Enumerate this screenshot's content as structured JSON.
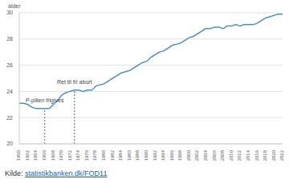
{
  "chart_data": {
    "type": "line",
    "ylabel": "alder",
    "source_label": "Kilde:",
    "source_link": "statistikbanken.dk/FOD11",
    "x": [
      1960,
      1961,
      1962,
      1963,
      1964,
      1965,
      1966,
      1967,
      1968,
      1969,
      1970,
      1971,
      1972,
      1973,
      1974,
      1975,
      1976,
      1977,
      1978,
      1979,
      1980,
      1981,
      1982,
      1983,
      1984,
      1985,
      1986,
      1987,
      1988,
      1989,
      1990,
      1991,
      1992,
      1993,
      1994,
      1995,
      1996,
      1997,
      1998,
      1999,
      2000,
      2001,
      2002,
      2003,
      2004,
      2005,
      2006,
      2007,
      2008,
      2009,
      2010,
      2011,
      2012,
      2013,
      2014,
      2015,
      2016,
      2017,
      2018,
      2019,
      2020,
      2021,
      2022
    ],
    "values": [
      23.1,
      23.1,
      23.0,
      22.8,
      22.7,
      22.7,
      22.7,
      22.7,
      23.0,
      23.3,
      23.7,
      23.9,
      24.0,
      24.1,
      24.1,
      24.0,
      24.1,
      24.1,
      24.4,
      24.5,
      24.6,
      24.8,
      25.0,
      25.2,
      25.4,
      25.5,
      25.6,
      25.8,
      26.0,
      26.2,
      26.3,
      26.6,
      26.8,
      27.0,
      27.1,
      27.3,
      27.5,
      27.6,
      27.7,
      27.9,
      28.1,
      28.2,
      28.4,
      28.6,
      28.8,
      28.8,
      28.9,
      28.9,
      28.8,
      29.0,
      29.0,
      29.1,
      29.0,
      29.1,
      29.1,
      29.1,
      29.2,
      29.4,
      29.6,
      29.7,
      29.8,
      29.9,
      29.9
    ],
    "color": "#4a90c8",
    "xlim": [
      1960,
      2022
    ],
    "xticks": [
      1960,
      1962,
      1964,
      1966,
      1968,
      1970,
      1972,
      1974,
      1976,
      1978,
      1980,
      1982,
      1984,
      1986,
      1988,
      1990,
      1992,
      1994,
      1996,
      1998,
      2000,
      2002,
      2004,
      2006,
      2008,
      2010,
      2012,
      2014,
      2016,
      2018,
      2020,
      2022
    ],
    "ylim": [
      20,
      30
    ],
    "yticks": [
      20,
      22,
      24,
      26,
      28,
      30
    ],
    "grid": true,
    "annotations": [
      {
        "text": "P-pillen frigives",
        "x": 1966
      },
      {
        "text": "Ret til fri abort",
        "x": 1973
      }
    ]
  }
}
